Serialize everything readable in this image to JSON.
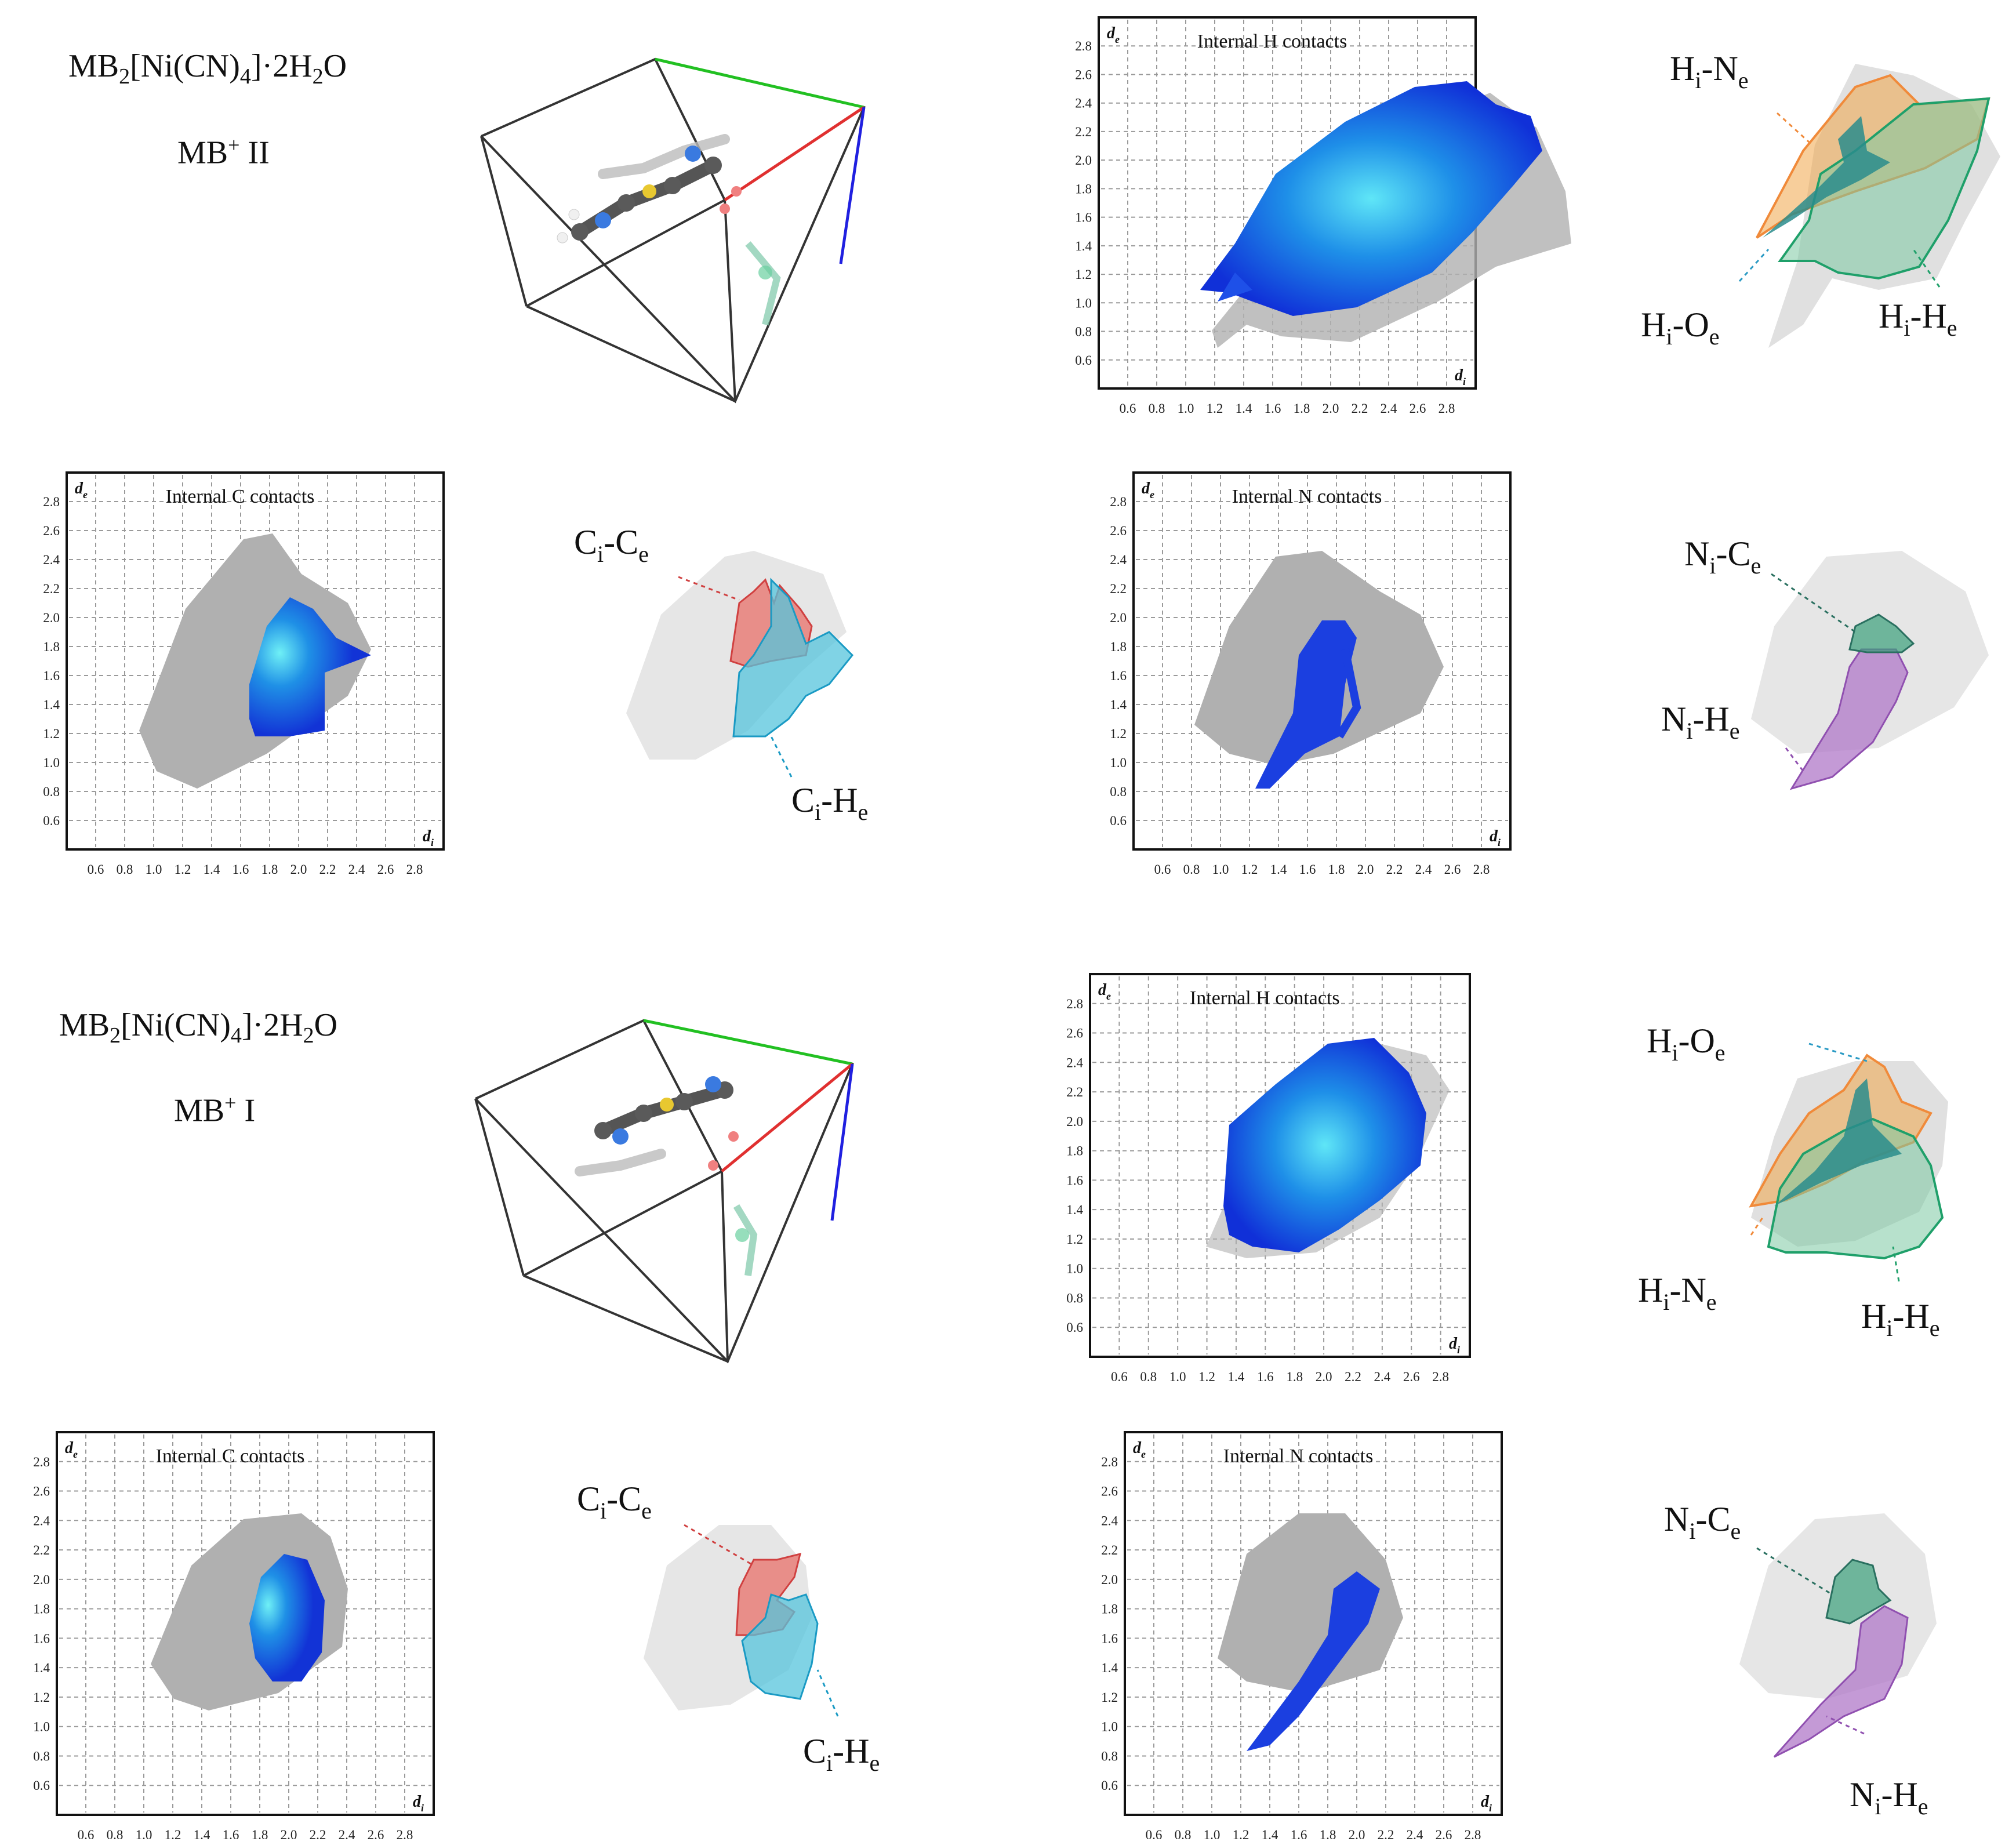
{
  "figure": {
    "compound_formula": {
      "prefix": "MB",
      "sub1": "2",
      "mid": "[Ni(CN)",
      "sub2": "4",
      "suffix": "]·2H",
      "sub3": "2",
      "tail": "O"
    },
    "rows": [
      {
        "cation": {
          "base": "MB",
          "charge": "+",
          "form": "II"
        }
      },
      {
        "cation": {
          "base": "MB",
          "charge": "+",
          "form": "I"
        }
      }
    ],
    "axis": {
      "x_label": {
        "main": "d",
        "sub": "i"
      },
      "y_label": {
        "main": "d",
        "sub": "e"
      },
      "ticks": [
        "0.6",
        "0.8",
        "1.0",
        "1.2",
        "1.4",
        "1.6",
        "1.8",
        "2.0",
        "2.2",
        "2.4",
        "2.6",
        "2.8"
      ]
    },
    "plots": {
      "h_contacts": "Internal H contacts",
      "c_contacts": "Internal C contacts",
      "n_contacts": "Internal N contacts"
    },
    "contact_labels": {
      "hi_ne": {
        "a": "H",
        "ai": "i",
        "b": "N",
        "be": "e"
      },
      "hi_oe": {
        "a": "H",
        "ai": "i",
        "b": "O",
        "be": "e"
      },
      "hi_he": {
        "a": "H",
        "ai": "i",
        "b": "H",
        "be": "e"
      },
      "ci_ce": {
        "a": "C",
        "ai": "i",
        "b": "C",
        "be": "e"
      },
      "ci_he": {
        "a": "C",
        "ai": "i",
        "b": "H",
        "be": "e"
      },
      "ni_ce": {
        "a": "N",
        "ai": "i",
        "b": "C",
        "be": "e"
      },
      "ni_he": {
        "a": "N",
        "ai": "i",
        "b": "H",
        "be": "e"
      }
    },
    "colors": {
      "point_cloud": "#b4b4b4",
      "fingerprint": "#1b3fe0",
      "fingerprint_hot": "#37d2f2",
      "ce": "#e8706a",
      "he_c": "#55c4dc",
      "he_h": "#2aa67a",
      "ne": "#f08a3a",
      "oe": "#2a8c8c",
      "ni_ce": "#3aa07a",
      "ni_he": "#b078c8",
      "cell_a": "#22c022",
      "cell_b": "#e03030",
      "cell_c": "#2020e0"
    }
  }
}
